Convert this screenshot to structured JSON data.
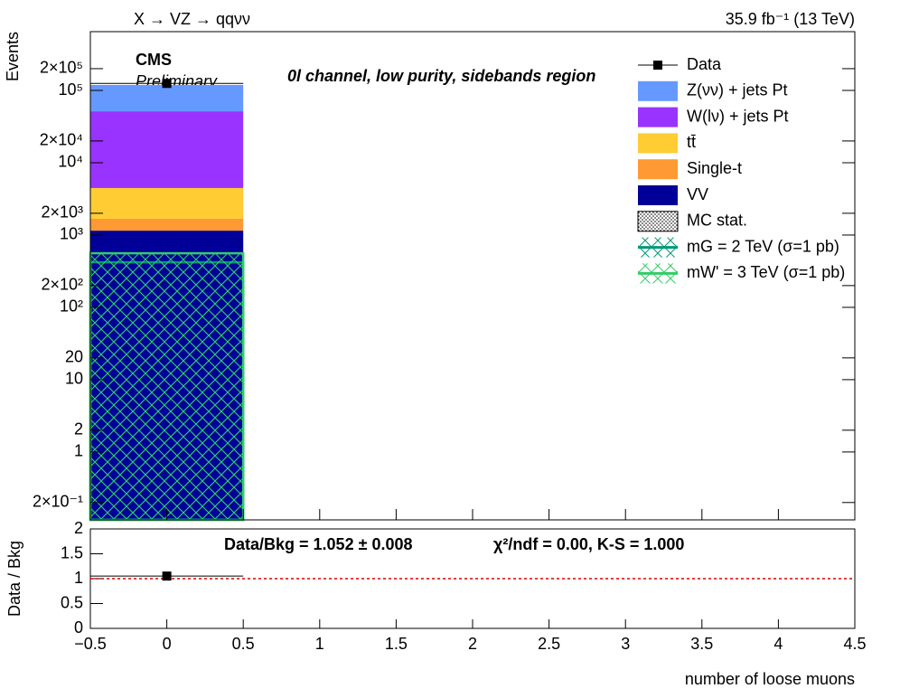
{
  "chart_data": [
    {
      "type": "stacked_histogram",
      "title": "X → VZ → qqνν",
      "lumi_label": "35.9 fb⁻¹ (13 TeV)",
      "experiment": "CMS",
      "status": "Preliminary",
      "annotation": "0l channel, low purity, sidebands region",
      "ylabel": "Events",
      "log_y": true,
      "bins": [
        -0.5,
        0.5,
        1.5,
        2.5,
        3.5,
        4.5
      ],
      "xlim": [
        -0.5,
        4.5
      ],
      "ylim": [
        0.115,
        650000
      ],
      "yticks": [
        {
          "value": 0.2,
          "label": "2×10⁻¹"
        },
        1,
        2,
        10,
        20,
        {
          "value": 100,
          "label": "10²"
        },
        {
          "value": 200,
          "label": "2×10²"
        },
        {
          "value": 1000,
          "label": "10³"
        },
        {
          "value": 2000,
          "label": "2×10³"
        },
        {
          "value": 10000,
          "label": "10⁴"
        },
        {
          "value": 20000,
          "label": "2×10⁴"
        },
        {
          "value": 100000,
          "label": "10⁵"
        },
        {
          "value": 200000,
          "label": "2×10⁵"
        }
      ],
      "data": {
        "name": "Data",
        "color": "#000000",
        "values": [
          125000,
          0,
          0,
          0,
          0
        ]
      },
      "series": [
        {
          "name": "VV",
          "color": "#000099",
          "values": [
            1150,
            0,
            0,
            0,
            0
          ]
        },
        {
          "name": "Single-t",
          "color": "#ff9933",
          "values": [
            530,
            0,
            0,
            0,
            0
          ]
        },
        {
          "name": "tt̄",
          "color": "#ffcc33",
          "values": [
            2790,
            0,
            0,
            0,
            0
          ]
        },
        {
          "name": "W(lν) + jets Pt",
          "color": "#9933ff",
          "values": [
            47000,
            0,
            0,
            0,
            0
          ]
        },
        {
          "name": "Z(νν) + jets Pt",
          "color": "#6699ff",
          "values": [
            67500,
            0,
            0,
            0,
            0
          ]
        }
      ],
      "mc_stat_label": "MC stat.",
      "signals": [
        {
          "name": "mG = 2 TeV (σ=1 pb)",
          "color": "#009977",
          "values": [
            420,
            0,
            0,
            0,
            0
          ]
        },
        {
          "name": "mW' = 3 TeV (σ=1 pb)",
          "color": "#33cc66",
          "values": [
            560,
            0,
            0,
            0,
            0
          ]
        }
      ]
    },
    {
      "type": "ratio",
      "ylabel": "Data / Bkg",
      "xlabel": "number of loose muons",
      "summary": "Data/Bkg = 1.052 ± 0.008",
      "tests": "χ²/ndf = 0.00,   K-S = 1.000",
      "x": [
        0
      ],
      "values": [
        1.052
      ],
      "errors": [
        0.008
      ],
      "bin_halfwidth": 0.5,
      "reference_line": 1,
      "xlim": [
        -0.5,
        4.5
      ],
      "ylim": [
        0,
        2
      ],
      "xticks": [
        {
          "value": -0.5,
          "label": "−0.5"
        },
        0,
        0.5,
        1,
        1.5,
        2,
        2.5,
        3,
        3.5,
        4,
        4.5
      ],
      "yticks": [
        0,
        0.5,
        1,
        1.5,
        2
      ]
    }
  ]
}
